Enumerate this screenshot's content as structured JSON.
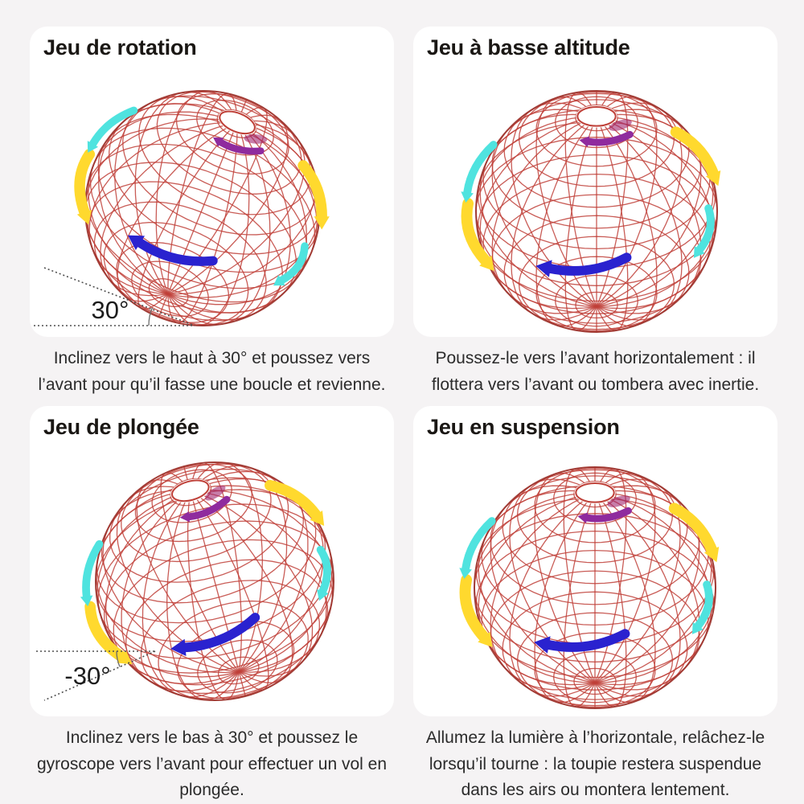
{
  "page": {
    "background": "#f5f3f4",
    "card_background": "#ffffff"
  },
  "colors": {
    "wireframe_red": "#bf4038",
    "wireframe_dark_red": "#9c352f",
    "arrow_yellow": "#ffd92e",
    "arrow_cyan": "#4fe3df",
    "arrow_blue": "#2a22cf",
    "arrow_purple": "#8f2b9e",
    "hole_smudge": "#a1286f",
    "title_text": "#1a1714",
    "caption_text": "#2b2b2b",
    "angle_line": "#4f4f4f"
  },
  "panels": [
    {
      "title": "Jeu de rotation",
      "caption": "Inclinez vers le haut à 30° et poussez vers l’avant pour qu’il fasse une boucle et revienne.",
      "angle_label": "30°"
    },
    {
      "title": "Jeu à basse altitude",
      "caption": "Poussez-le vers l’avant horizontalement : il flottera vers l’avant ou tombera avec inertie.",
      "angle_label": null
    },
    {
      "title": "Jeu de plongée",
      "caption": "Inclinez vers le bas à 30° et poussez le gyroscope vers l’avant pour effectuer un vol en plongée.",
      "angle_label": "-30°"
    },
    {
      "title": "Jeu en suspension",
      "caption": "Allumez la lumière à l’horizontale, relâchez-le lorsqu’il tourne : la toupie restera suspendue dans les airs ou montera lentement.",
      "angle_label": null
    }
  ]
}
